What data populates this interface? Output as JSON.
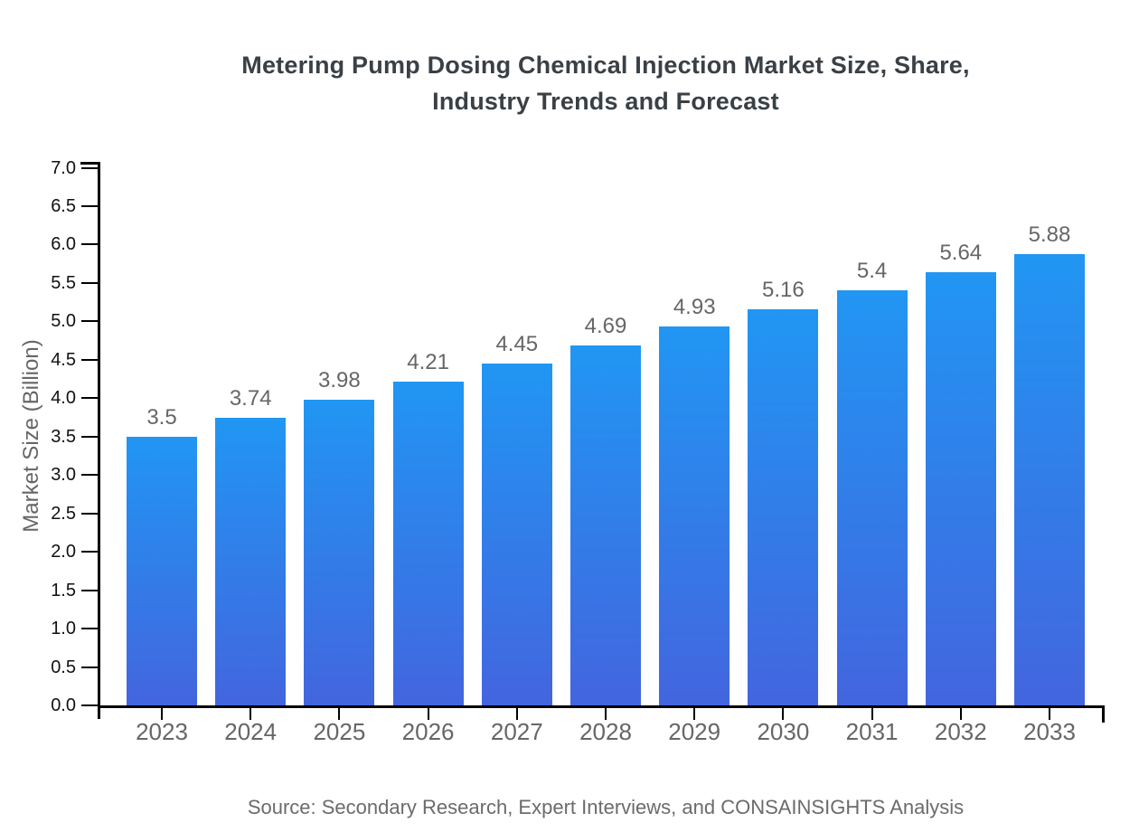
{
  "title": {
    "line1": "Metering Pump Dosing Chemical Injection Market Size, Share,",
    "line2": "Industry Trends and Forecast"
  },
  "source_note": "Source: Secondary Research, Expert Interviews, and CONSAINSIGHTS Analysis",
  "colors": {
    "bar_gradient_top": "#2196F3",
    "bar_gradient_bottom": "#4365DE",
    "axis_line": "#000000",
    "axis_tick_label": "#111111",
    "muted_text": "#666666",
    "title_text": "#3a4045"
  },
  "chart_data": {
    "type": "bar",
    "title": "Metering Pump Dosing Chemical Injection Market Size, Share, Industry Trends and Forecast",
    "categories": [
      "2023",
      "2024",
      "2025",
      "2026",
      "2027",
      "2028",
      "2029",
      "2030",
      "2031",
      "2032",
      "2033"
    ],
    "values": [
      3.5,
      3.74,
      3.98,
      4.21,
      4.45,
      4.69,
      4.93,
      5.16,
      5.4,
      5.64,
      5.88
    ],
    "data_labels": [
      "3.5",
      "3.74",
      "3.98",
      "4.21",
      "4.45",
      "4.69",
      "4.93",
      "5.16",
      "5.4",
      "5.64",
      "5.88"
    ],
    "xlabel": "",
    "ylabel": "Market Size (Billion)",
    "ylim": [
      0.0,
      7.0
    ],
    "ytick_step": 0.5,
    "grid": false,
    "legend_position": "none"
  }
}
